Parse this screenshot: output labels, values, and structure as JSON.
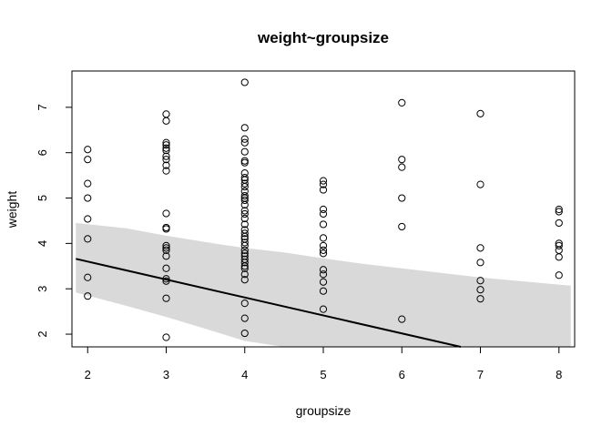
{
  "chart_data": {
    "type": "scatter",
    "title": "weight~groupsize",
    "xlabel": "groupsize",
    "ylabel": "weight",
    "xlim": [
      1.8,
      8.2
    ],
    "ylim": [
      1.72,
      7.8
    ],
    "x_ticks": [
      2,
      3,
      4,
      5,
      6,
      7,
      8
    ],
    "y_ticks": [
      2,
      3,
      4,
      5,
      6,
      7
    ],
    "grid": false,
    "colors": {
      "points": "#000000",
      "line": "#000000",
      "band": "#d9d9d9"
    },
    "points": [
      {
        "x": 2,
        "y": 6.07
      },
      {
        "x": 2,
        "y": 5.85
      },
      {
        "x": 2,
        "y": 5.32
      },
      {
        "x": 2,
        "y": 5.0
      },
      {
        "x": 2,
        "y": 4.54
      },
      {
        "x": 2,
        "y": 4.1
      },
      {
        "x": 2,
        "y": 3.25
      },
      {
        "x": 2,
        "y": 2.84
      },
      {
        "x": 3,
        "y": 6.85
      },
      {
        "x": 3,
        "y": 6.7
      },
      {
        "x": 3,
        "y": 6.22
      },
      {
        "x": 3,
        "y": 6.17
      },
      {
        "x": 3,
        "y": 6.1
      },
      {
        "x": 3,
        "y": 6.05
      },
      {
        "x": 3,
        "y": 5.92
      },
      {
        "x": 3,
        "y": 5.85
      },
      {
        "x": 3,
        "y": 5.72
      },
      {
        "x": 3,
        "y": 5.6
      },
      {
        "x": 3,
        "y": 4.66
      },
      {
        "x": 3,
        "y": 4.35
      },
      {
        "x": 3,
        "y": 4.32
      },
      {
        "x": 3,
        "y": 3.95
      },
      {
        "x": 3,
        "y": 3.9
      },
      {
        "x": 3,
        "y": 3.85
      },
      {
        "x": 3,
        "y": 3.72
      },
      {
        "x": 3,
        "y": 3.45
      },
      {
        "x": 3,
        "y": 3.22
      },
      {
        "x": 3,
        "y": 3.17
      },
      {
        "x": 3,
        "y": 2.79
      },
      {
        "x": 3,
        "y": 1.93
      },
      {
        "x": 4,
        "y": 7.55
      },
      {
        "x": 4,
        "y": 6.55
      },
      {
        "x": 4,
        "y": 6.3
      },
      {
        "x": 4,
        "y": 6.22
      },
      {
        "x": 4,
        "y": 6.02
      },
      {
        "x": 4,
        "y": 5.82
      },
      {
        "x": 4,
        "y": 5.78
      },
      {
        "x": 4,
        "y": 5.55
      },
      {
        "x": 4,
        "y": 5.45
      },
      {
        "x": 4,
        "y": 5.4
      },
      {
        "x": 4,
        "y": 5.32
      },
      {
        "x": 4,
        "y": 5.25
      },
      {
        "x": 4,
        "y": 5.15
      },
      {
        "x": 4,
        "y": 5.05
      },
      {
        "x": 4,
        "y": 5.0
      },
      {
        "x": 4,
        "y": 4.95
      },
      {
        "x": 4,
        "y": 4.85
      },
      {
        "x": 4,
        "y": 4.72
      },
      {
        "x": 4,
        "y": 4.65
      },
      {
        "x": 4,
        "y": 4.55
      },
      {
        "x": 4,
        "y": 4.42
      },
      {
        "x": 4,
        "y": 4.3
      },
      {
        "x": 4,
        "y": 4.22
      },
      {
        "x": 4,
        "y": 4.15
      },
      {
        "x": 4,
        "y": 4.1
      },
      {
        "x": 4,
        "y": 4.02
      },
      {
        "x": 4,
        "y": 3.95
      },
      {
        "x": 4,
        "y": 3.85
      },
      {
        "x": 4,
        "y": 3.78
      },
      {
        "x": 4,
        "y": 3.72
      },
      {
        "x": 4,
        "y": 3.65
      },
      {
        "x": 4,
        "y": 3.58
      },
      {
        "x": 4,
        "y": 3.5
      },
      {
        "x": 4,
        "y": 3.45
      },
      {
        "x": 4,
        "y": 3.32
      },
      {
        "x": 4,
        "y": 3.2
      },
      {
        "x": 4,
        "y": 2.68
      },
      {
        "x": 4,
        "y": 2.35
      },
      {
        "x": 4,
        "y": 2.02
      },
      {
        "x": 5,
        "y": 5.38
      },
      {
        "x": 5,
        "y": 5.3
      },
      {
        "x": 5,
        "y": 5.18
      },
      {
        "x": 5,
        "y": 4.75
      },
      {
        "x": 5,
        "y": 4.65
      },
      {
        "x": 5,
        "y": 4.42
      },
      {
        "x": 5,
        "y": 4.12
      },
      {
        "x": 5,
        "y": 3.95
      },
      {
        "x": 5,
        "y": 3.85
      },
      {
        "x": 5,
        "y": 3.78
      },
      {
        "x": 5,
        "y": 3.42
      },
      {
        "x": 5,
        "y": 3.32
      },
      {
        "x": 5,
        "y": 3.15
      },
      {
        "x": 5,
        "y": 2.95
      },
      {
        "x": 5,
        "y": 2.55
      },
      {
        "x": 6,
        "y": 7.1
      },
      {
        "x": 6,
        "y": 5.85
      },
      {
        "x": 6,
        "y": 5.68
      },
      {
        "x": 6,
        "y": 5.0
      },
      {
        "x": 6,
        "y": 4.37
      },
      {
        "x": 6,
        "y": 2.33
      },
      {
        "x": 7,
        "y": 6.86
      },
      {
        "x": 7,
        "y": 5.3
      },
      {
        "x": 7,
        "y": 3.9
      },
      {
        "x": 7,
        "y": 3.58
      },
      {
        "x": 7,
        "y": 3.18
      },
      {
        "x": 7,
        "y": 2.98
      },
      {
        "x": 7,
        "y": 2.78
      },
      {
        "x": 8,
        "y": 4.75
      },
      {
        "x": 8,
        "y": 4.7
      },
      {
        "x": 8,
        "y": 4.45
      },
      {
        "x": 8,
        "y": 4.0
      },
      {
        "x": 8,
        "y": 3.95
      },
      {
        "x": 8,
        "y": 3.85
      },
      {
        "x": 8,
        "y": 3.7
      },
      {
        "x": 8,
        "y": 3.3
      }
    ],
    "regression_line": {
      "x": [
        1.85,
        6.75
      ],
      "y": [
        3.66,
        1.72
      ]
    },
    "interval_band": {
      "x": [
        1.85,
        2.5,
        3.0,
        3.5,
        4.0,
        4.5,
        5.0,
        5.5,
        6.0,
        6.5,
        7.0,
        7.5,
        8.15
      ],
      "upper": [
        4.45,
        4.33,
        4.17,
        4.03,
        3.9,
        3.8,
        3.67,
        3.55,
        3.45,
        3.35,
        3.25,
        3.17,
        3.07
      ],
      "lower": [
        2.92,
        2.62,
        2.38,
        2.12,
        1.85,
        1.72,
        1.72,
        1.72,
        1.72,
        1.72,
        1.72,
        1.72,
        1.72
      ]
    }
  }
}
